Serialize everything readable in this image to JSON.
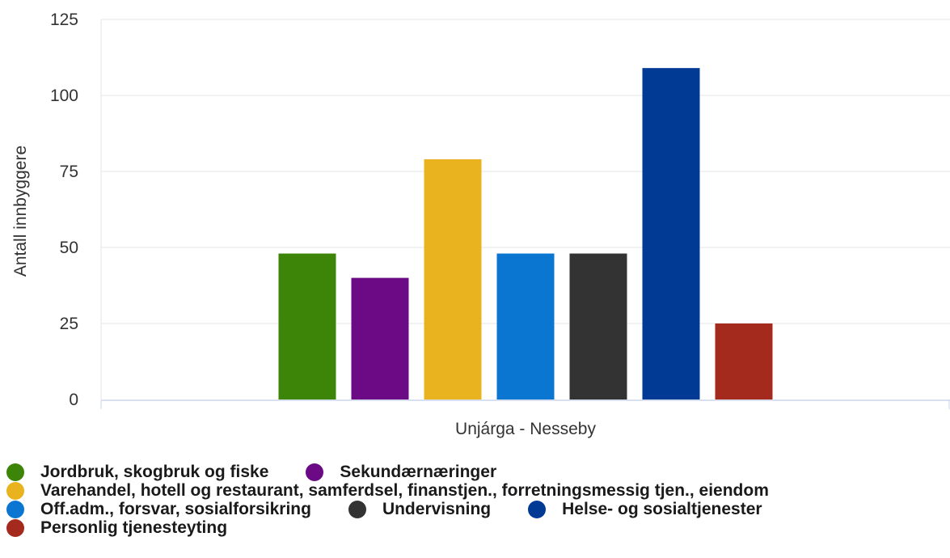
{
  "chart_data": {
    "type": "bar",
    "title": "",
    "xlabel": "Unjárga - Nesseby",
    "ylabel": "Antall innbyggere",
    "ylim": [
      0,
      125
    ],
    "yticks": [
      0,
      25,
      50,
      75,
      100,
      125
    ],
    "categories": [
      "Unjárga - Nesseby"
    ],
    "grid": true,
    "legend_position": "bottom-left",
    "series": [
      {
        "name": "Jordbruk, skogbruk og fiske",
        "color": "#3d8508",
        "values": [
          48
        ]
      },
      {
        "name": "Sekundærnæringer",
        "color": "#6b0a84",
        "values": [
          40
        ]
      },
      {
        "name": "Varehandel, hotell og restaurant, samferdsel, finanstjen., forretningsmessig tjen., eiendom",
        "color": "#e9b320",
        "values": [
          79
        ]
      },
      {
        "name": "Off.adm., forsvar, sosialforsikring",
        "color": "#0a76d1",
        "values": [
          48
        ]
      },
      {
        "name": "Undervisning",
        "color": "#333333",
        "values": [
          48
        ]
      },
      {
        "name": "Helse- og sosialtjenester",
        "color": "#013a95",
        "values": [
          109
        ]
      },
      {
        "name": "Personlig tjenesteyting",
        "color": "#a52a1e",
        "values": [
          25
        ]
      }
    ]
  }
}
